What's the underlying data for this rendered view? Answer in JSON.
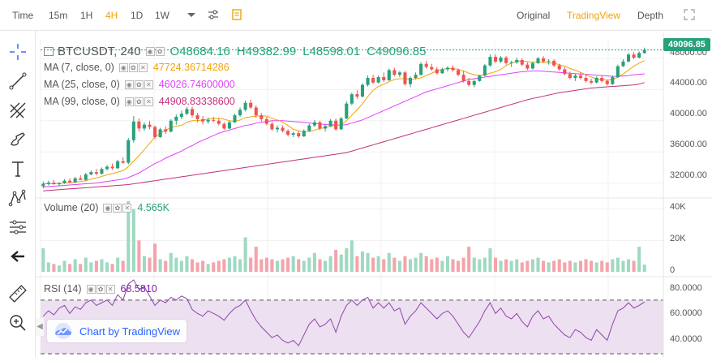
{
  "toolbar": {
    "timeframes": [
      {
        "label": "Time",
        "active": false
      },
      {
        "label": "15m",
        "active": false
      },
      {
        "label": "1H",
        "active": false
      },
      {
        "label": "4H",
        "active": true
      },
      {
        "label": "1D",
        "active": false
      },
      {
        "label": "1W",
        "active": false
      }
    ],
    "views": [
      {
        "label": "Original",
        "active": false
      },
      {
        "label": "TradingView",
        "active": true
      },
      {
        "label": "Depth",
        "active": false
      }
    ]
  },
  "legend": {
    "symbol": "BTCUSDT, 240",
    "open": "O48684.16",
    "high": "H49382.99",
    "low": "L48598.01",
    "close": "C49096.85",
    "ma7": {
      "label": "MA (7, close, 0)",
      "value": "47724.36714286",
      "color": "#f0a30a"
    },
    "ma25": {
      "label": "MA (25, close, 0)",
      "value": "46026.74600000",
      "color": "#e040fb"
    },
    "ma99": {
      "label": "MA (99, close, 0)",
      "value": "44908.83338600",
      "color": "#c0307a"
    },
    "volume": {
      "label": "Volume (20)",
      "value": "4.565K",
      "color": "#26a17b"
    },
    "rsi": {
      "label": "RSI (14)",
      "value": "68.5810",
      "color": "#7b1fa2"
    }
  },
  "price_tag": "49096.85",
  "price_axis": [
    "48000.00",
    "44000.00",
    "40000.00",
    "36000.00",
    "32000.00"
  ],
  "volume_axis": [
    "40K",
    "20K",
    "0"
  ],
  "rsi_axis": [
    "80.0000",
    "60.0000",
    "40.0000"
  ],
  "watermark": "Chart by TradingView",
  "colors": {
    "up": "#26a17b",
    "down": "#ef5350",
    "vol_up": "#9fd9c2",
    "vol_down": "#f5a3ab",
    "rsi_fill": "#ede0f0"
  },
  "chart_data": {
    "type": "candlestick",
    "symbol": "BTCUSDT",
    "interval": "240",
    "price_range": [
      30500,
      50500
    ],
    "candles": [
      [
        31600,
        32200,
        31300,
        31900
      ],
      [
        31900,
        32300,
        31700,
        32050
      ],
      [
        32050,
        32400,
        31800,
        31850
      ],
      [
        31850,
        32100,
        31600,
        32000
      ],
      [
        32000,
        32500,
        31900,
        32300
      ],
      [
        32300,
        32600,
        32000,
        32100
      ],
      [
        32100,
        32800,
        32000,
        32600
      ],
      [
        32600,
        33000,
        32400,
        32400
      ],
      [
        32400,
        33300,
        32300,
        33100
      ],
      [
        33100,
        33600,
        33000,
        33400
      ],
      [
        33400,
        33800,
        33000,
        33200
      ],
      [
        33200,
        34000,
        33100,
        33800
      ],
      [
        33800,
        34300,
        33600,
        34100
      ],
      [
        34100,
        34500,
        33700,
        33900
      ],
      [
        33900,
        35000,
        33800,
        34800
      ],
      [
        34800,
        35300,
        34500,
        34600
      ],
      [
        34600,
        37800,
        34400,
        37500
      ],
      [
        37500,
        40600,
        37200,
        39900
      ],
      [
        39900,
        40300,
        38600,
        39000
      ],
      [
        39000,
        39800,
        38700,
        39500
      ],
      [
        39500,
        40000,
        38900,
        39200
      ],
      [
        39200,
        39400,
        37700,
        37900
      ],
      [
        37900,
        39100,
        37800,
        38900
      ],
      [
        38900,
        39300,
        38300,
        38600
      ],
      [
        38600,
        40200,
        38500,
        40000
      ],
      [
        40000,
        40800,
        39500,
        40500
      ],
      [
        40500,
        41300,
        40200,
        40900
      ],
      [
        40900,
        41800,
        40700,
        41500
      ],
      [
        41500,
        41800,
        40400,
        40700
      ],
      [
        40700,
        41000,
        39800,
        40200
      ],
      [
        40200,
        40600,
        39500,
        39900
      ],
      [
        39900,
        40400,
        39600,
        40100
      ],
      [
        40100,
        40500,
        39800,
        40000
      ],
      [
        40000,
        40300,
        39400,
        39600
      ],
      [
        39600,
        39800,
        38800,
        39000
      ],
      [
        39000,
        40000,
        38900,
        39800
      ],
      [
        39800,
        40900,
        39700,
        40700
      ],
      [
        40700,
        41700,
        40500,
        41400
      ],
      [
        41400,
        42600,
        41200,
        42300
      ],
      [
        42300,
        42700,
        41500,
        41700
      ],
      [
        41700,
        42000,
        40400,
        40700
      ],
      [
        40700,
        41000,
        39900,
        40200
      ],
      [
        40200,
        40500,
        39400,
        39600
      ],
      [
        39600,
        39900,
        38700,
        38900
      ],
      [
        38900,
        39400,
        38500,
        39100
      ],
      [
        39100,
        39400,
        38500,
        38700
      ],
      [
        38700,
        38900,
        38000,
        38200
      ],
      [
        38200,
        38600,
        37900,
        38400
      ],
      [
        38400,
        38700,
        37800,
        38000
      ],
      [
        38000,
        38900,
        37900,
        38700
      ],
      [
        38700,
        39600,
        38600,
        39400
      ],
      [
        39400,
        40100,
        39200,
        39800
      ],
      [
        39800,
        40000,
        38800,
        39000
      ],
      [
        39000,
        39500,
        38600,
        39300
      ],
      [
        39300,
        40200,
        39200,
        40000
      ],
      [
        40000,
        40300,
        38700,
        38900
      ],
      [
        38900,
        40500,
        38800,
        40300
      ],
      [
        40300,
        42500,
        40200,
        42200
      ],
      [
        42200,
        43600,
        42000,
        43400
      ],
      [
        43400,
        43900,
        42800,
        43100
      ],
      [
        43100,
        44800,
        43000,
        44600
      ],
      [
        44600,
        45800,
        44400,
        45500
      ],
      [
        45500,
        45900,
        44700,
        44900
      ],
      [
        44900,
        45800,
        44800,
        45600
      ],
      [
        45600,
        46200,
        45000,
        45200
      ],
      [
        45200,
        46700,
        45100,
        46500
      ],
      [
        46500,
        46800,
        45700,
        45900
      ],
      [
        45900,
        46400,
        45600,
        46200
      ],
      [
        46200,
        46400,
        44500,
        44700
      ],
      [
        44700,
        45700,
        44300,
        45500
      ],
      [
        45500,
        46200,
        45300,
        45900
      ],
      [
        45900,
        47500,
        45800,
        47300
      ],
      [
        47300,
        47700,
        46700,
        46900
      ],
      [
        46900,
        47300,
        46400,
        46600
      ],
      [
        46600,
        46900,
        45900,
        46100
      ],
      [
        46100,
        46800,
        46000,
        46600
      ],
      [
        46600,
        47000,
        46300,
        46800
      ],
      [
        46800,
        47100,
        46300,
        46500
      ],
      [
        46500,
        46700,
        45700,
        45900
      ],
      [
        45900,
        46400,
        44900,
        45100
      ],
      [
        45100,
        45500,
        44400,
        44600
      ],
      [
        44600,
        45300,
        44300,
        45100
      ],
      [
        45100,
        45900,
        45000,
        45800
      ],
      [
        45800,
        47300,
        45700,
        47100
      ],
      [
        47100,
        48500,
        46900,
        48200
      ],
      [
        48200,
        48500,
        47400,
        47600
      ],
      [
        47600,
        48300,
        47400,
        48100
      ],
      [
        48100,
        48300,
        47200,
        47400
      ],
      [
        47400,
        47700,
        46900,
        47500
      ],
      [
        47500,
        48100,
        47300,
        47800
      ],
      [
        47800,
        48000,
        47000,
        47200
      ],
      [
        47200,
        47500,
        46500,
        46700
      ],
      [
        46700,
        47600,
        46600,
        47400
      ],
      [
        47400,
        48200,
        47300,
        48000
      ],
      [
        48000,
        48300,
        47400,
        47600
      ],
      [
        47600,
        47900,
        47200,
        47700
      ],
      [
        47700,
        47900,
        46900,
        47100
      ],
      [
        47100,
        47300,
        46400,
        46600
      ],
      [
        46600,
        46900,
        45800,
        46000
      ],
      [
        46000,
        46300,
        45300,
        45500
      ],
      [
        45500,
        46000,
        45100,
        45800
      ],
      [
        45800,
        46200,
        45300,
        45500
      ],
      [
        45500,
        45900,
        44900,
        45100
      ],
      [
        45100,
        45400,
        44700,
        44900
      ],
      [
        44900,
        45700,
        44800,
        45500
      ],
      [
        45500,
        45800,
        44900,
        45100
      ],
      [
        45100,
        45300,
        44500,
        44700
      ],
      [
        44700,
        45800,
        44600,
        45600
      ],
      [
        45600,
        47200,
        45500,
        47000
      ],
      [
        47000,
        47900,
        46900,
        47600
      ],
      [
        47600,
        48700,
        47500,
        48500
      ],
      [
        48500,
        48800,
        47900,
        48100
      ],
      [
        48100,
        48900,
        48000,
        48700
      ],
      [
        48684.16,
        49382.99,
        48598.01,
        49096.85
      ]
    ],
    "ma7": [
      31900,
      31900,
      31950,
      31950,
      32000,
      32050,
      32100,
      32200,
      32300,
      32500,
      32650,
      32850,
      33050,
      33200,
      33400,
      33600,
      34100,
      34800,
      35500,
      36300,
      37100,
      37900,
      38400,
      38800,
      39100,
      39300,
      39400,
      39800,
      40000,
      40000,
      40100,
      40200,
      40300,
      40300,
      40200,
      40000,
      39900,
      40100,
      40400,
      40500,
      40600,
      40600,
      40600,
      40300,
      40100,
      39800,
      39400,
      38900,
      38700,
      38600,
      38600,
      38800,
      39000,
      39100,
      39300,
      39400,
      39500,
      40000,
      40700,
      41400,
      42200,
      43100,
      43900,
      44400,
      44700,
      45000,
      45300,
      45400,
      45400,
      45300,
      45400,
      45500,
      45800,
      46100,
      46400,
      46600,
      46700,
      46700,
      46600,
      46400,
      46100,
      45900,
      45800,
      45900,
      46100,
      46300,
      46600,
      47100,
      47400,
      47600,
      47700,
      47600,
      47500,
      47500,
      47500,
      47400,
      47400,
      47200,
      47000,
      46700,
      46500,
      46200,
      45900,
      45600,
      45400,
      45300,
      45200,
      45300,
      45600,
      46000,
      46500,
      47000,
      47400,
      47724.37
    ],
    "ma25": [
      31500,
      31550,
      31600,
      31650,
      31700,
      31750,
      31800,
      31850,
      31900,
      31950,
      32000,
      32100,
      32200,
      32300,
      32400,
      32500,
      32700,
      33000,
      33300,
      33700,
      34100,
      34500,
      34800,
      35200,
      35500,
      35800,
      36100,
      36500,
      36800,
      37200,
      37500,
      37800,
      38100,
      38400,
      38600,
      38800,
      39000,
      39200,
      39400,
      39500,
      39700,
      39800,
      39900,
      40000,
      40000,
      40000,
      39950,
      39900,
      39850,
      39800,
      39700,
      39650,
      39600,
      39500,
      39500,
      39450,
      39450,
      39500,
      39700,
      39900,
      40100,
      40400,
      40700,
      41000,
      41300,
      41600,
      41900,
      42200,
      42500,
      42800,
      43100,
      43400,
      43700,
      43900,
      44100,
      44300,
      44500,
      44700,
      44900,
      45100,
      45300,
      45400,
      45500,
      45600,
      45700,
      45800,
      45900,
      46000,
      46100,
      46200,
      46300,
      46350,
      46400,
      46400,
      46350,
      46300,
      46250,
      46200,
      46150,
      46100,
      46050,
      46000,
      45950,
      45900,
      45850,
      45800,
      45750,
      45700,
      45700,
      45750,
      45800,
      45900,
      45950,
      46026.75
    ],
    "ma99": [
      31000,
      31050,
      31100,
      31150,
      31200,
      31250,
      31300,
      31350,
      31400,
      31450,
      31500,
      31550,
      31600,
      31650,
      31700,
      31750,
      31800,
      31900,
      32000,
      32100,
      32200,
      32300,
      32400,
      32500,
      32600,
      32700,
      32800,
      32900,
      33000,
      33100,
      33200,
      33300,
      33400,
      33500,
      33600,
      33700,
      33800,
      33900,
      34000,
      34100,
      34200,
      34300,
      34400,
      34500,
      34600,
      34700,
      34800,
      34900,
      35000,
      35100,
      35200,
      35300,
      35400,
      35500,
      35600,
      35700,
      35800,
      35900,
      36100,
      36300,
      36500,
      36700,
      36900,
      37100,
      37300,
      37500,
      37700,
      37900,
      38100,
      38300,
      38500,
      38700,
      38900,
      39100,
      39300,
      39500,
      39700,
      39900,
      40100,
      40300,
      40500,
      40700,
      40900,
      41100,
      41300,
      41500,
      41700,
      41900,
      42100,
      42300,
      42500,
      42700,
      42850,
      43000,
      43150,
      43300,
      43450,
      43600,
      43700,
      43800,
      43900,
      44000,
      44100,
      44200,
      44250,
      44300,
      44350,
      44400,
      44450,
      44500,
      44550,
      44600,
      44700,
      44908.83
    ],
    "volume_range": [
      0,
      45000
    ],
    "volume": [
      15000,
      6000,
      5000,
      4000,
      7000,
      5000,
      8000,
      5000,
      9000,
      6000,
      7000,
      8000,
      6000,
      5000,
      9000,
      7000,
      45000,
      40000,
      20000,
      10000,
      9000,
      18000,
      8000,
      7000,
      12000,
      9000,
      7000,
      10000,
      8000,
      6000,
      7000,
      5000,
      6000,
      7000,
      8000,
      9000,
      10000,
      8000,
      22000,
      9000,
      16000,
      8000,
      9000,
      8000,
      7000,
      8000,
      9000,
      10000,
      8000,
      7000,
      9000,
      12000,
      8000,
      7000,
      10000,
      14000,
      11000,
      15000,
      20000,
      10000,
      13000,
      12000,
      9000,
      10000,
      8000,
      12000,
      9000,
      7000,
      10000,
      8000,
      9000,
      12000,
      10000,
      8000,
      9000,
      7000,
      10000,
      8000,
      7000,
      9000,
      16000,
      9000,
      8000,
      9000,
      15000,
      9000,
      7000,
      8000,
      7000,
      8000,
      6000,
      7000,
      8000,
      9000,
      7000,
      6000,
      7000,
      8000,
      6000,
      7000,
      6000,
      7000,
      8000,
      7000,
      6000,
      7000,
      6000,
      8000,
      9000,
      7000,
      8000,
      7000,
      16000,
      4565
    ],
    "rsi_range": [
      30,
      85
    ],
    "rsi": [
      58,
      62,
      59,
      64,
      66,
      60,
      65,
      63,
      68,
      70,
      66,
      68,
      70,
      66,
      74,
      70,
      82,
      85,
      78,
      80,
      73,
      66,
      70,
      68,
      72,
      70,
      73,
      71,
      63,
      60,
      58,
      62,
      60,
      58,
      55,
      60,
      64,
      66,
      70,
      62,
      55,
      50,
      46,
      42,
      44,
      40,
      38,
      40,
      36,
      44,
      52,
      56,
      50,
      52,
      56,
      46,
      58,
      66,
      70,
      66,
      70,
      72,
      64,
      68,
      64,
      68,
      62,
      64,
      52,
      58,
      62,
      68,
      64,
      60,
      56,
      60,
      62,
      58,
      52,
      46,
      42,
      48,
      54,
      62,
      68,
      60,
      64,
      58,
      56,
      60,
      54,
      50,
      58,
      62,
      56,
      58,
      52,
      48,
      44,
      42,
      48,
      46,
      42,
      40,
      48,
      44,
      40,
      52,
      62,
      64,
      68,
      64,
      66,
      68.58
    ]
  }
}
